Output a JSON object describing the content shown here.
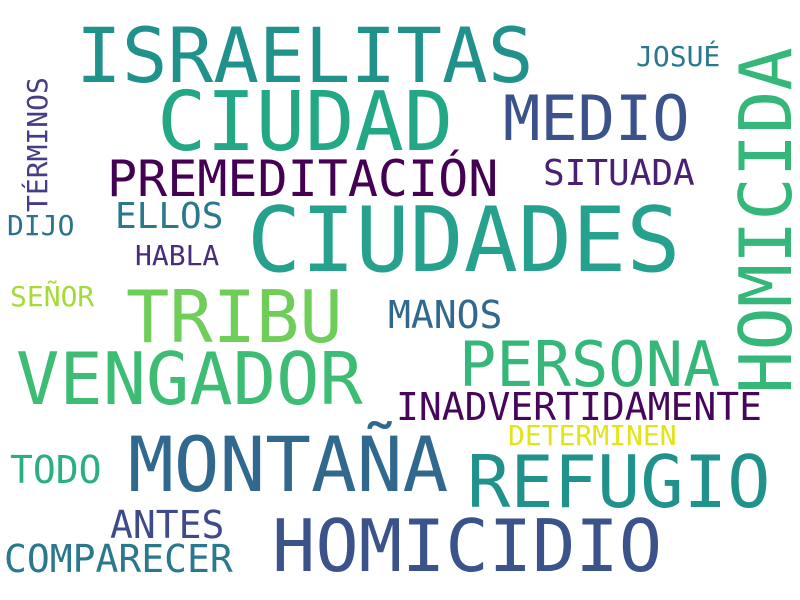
{
  "words": {
    "israelitas": {
      "text": "ISRAELITAS",
      "color": "#21918c"
    },
    "ciudad": {
      "text": "CIUDAD",
      "color": "#22a884"
    },
    "medio": {
      "text": "MEDIO",
      "color": "#3b528b"
    },
    "homicida": {
      "text": "HOMICIDA",
      "color": "#35b779"
    },
    "josue": {
      "text": "JOSUÉ",
      "color": "#2a788e"
    },
    "terminos": {
      "text": "TÉRMINOS",
      "color": "#433e85"
    },
    "premeditacion": {
      "text": "PREMEDITACIÓN",
      "color": "#440154"
    },
    "situada": {
      "text": "SITUADA",
      "color": "#482173"
    },
    "ciudades": {
      "text": "CIUDADES",
      "color": "#25a18e"
    },
    "ellos": {
      "text": "ELLOS",
      "color": "#2a788e"
    },
    "dijo": {
      "text": "DIJO",
      "color": "#2c728e"
    },
    "habla": {
      "text": "HABLA",
      "color": "#472d7b"
    },
    "senor": {
      "text": "SEÑOR",
      "color": "#a5db36"
    },
    "tribu": {
      "text": "TRIBU",
      "color": "#6ece58"
    },
    "manos": {
      "text": "MANOS",
      "color": "#31688e"
    },
    "persona": {
      "text": "PERSONA",
      "color": "#35b779"
    },
    "vengador": {
      "text": "VENGADOR",
      "color": "#3dbc74"
    },
    "inadvertidamente": {
      "text": "INADVERTIDAMENTE",
      "color": "#46075a"
    },
    "determinen": {
      "text": "DETERMINEN",
      "color": "#e2e418"
    },
    "montana": {
      "text": "MONTAÑA",
      "color": "#31688e"
    },
    "refugio": {
      "text": "REFUGIO",
      "color": "#21918c"
    },
    "todo": {
      "text": "TODO",
      "color": "#2ab07f"
    },
    "antes": {
      "text": "ANTES",
      "color": "#3e4a89"
    },
    "homicidio": {
      "text": "HOMICIDIO",
      "color": "#3b528b"
    },
    "comparecer": {
      "text": "COMPARECER",
      "color": "#2a788e"
    }
  }
}
